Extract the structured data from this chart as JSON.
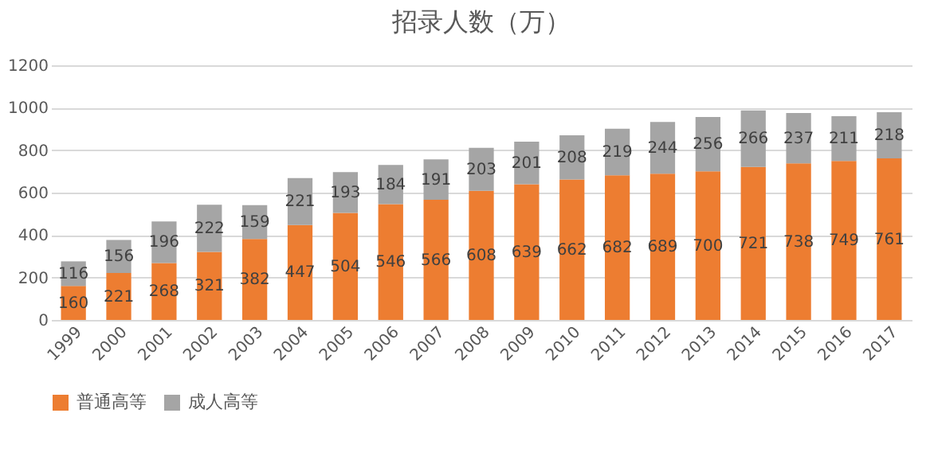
{
  "chart_data": {
    "type": "bar",
    "title": "招录人数（万）",
    "stacked": true,
    "data_labels": true,
    "grid": "y",
    "legend": "bottom",
    "categories": [
      "1999",
      "2000",
      "2001",
      "2002",
      "2003",
      "2004",
      "2005",
      "2006",
      "2007",
      "2008",
      "2009",
      "2010",
      "2011",
      "2012",
      "2013",
      "2014",
      "2015",
      "2016",
      "2017"
    ],
    "series": [
      {
        "name": "普通高等",
        "color": "#ed7d31",
        "values": [
          160,
          221,
          268,
          321,
          382,
          447,
          504,
          546,
          566,
          608,
          639,
          662,
          682,
          689,
          700,
          721,
          738,
          749,
          761
        ]
      },
      {
        "name": "成人高等",
        "color": "#a5a5a5",
        "values": [
          116,
          156,
          196,
          222,
          159,
          221,
          193,
          184,
          191,
          203,
          201,
          208,
          219,
          244,
          256,
          266,
          237,
          211,
          218
        ]
      }
    ],
    "ylim": [
      0,
      1200
    ],
    "yticks": [
      0,
      200,
      400,
      600,
      800,
      1000,
      1200
    ]
  }
}
